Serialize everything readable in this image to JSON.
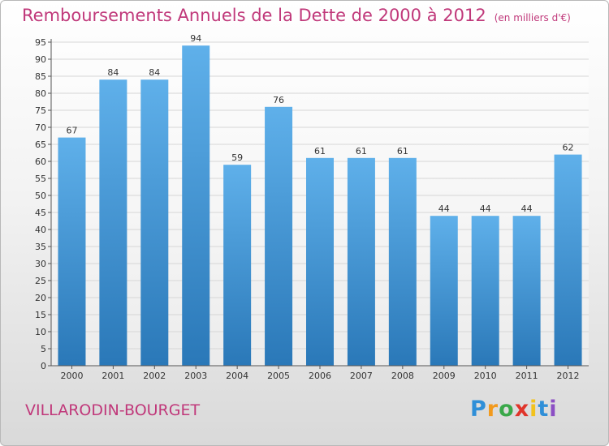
{
  "title": "Remboursements Annuels de la Dette de 2000 à 2012",
  "unit": "(en milliers d'€)",
  "place": "VILLARODIN-BOURGET",
  "logo": [
    "P",
    "r",
    "o",
    "x",
    "i",
    "t",
    "i"
  ],
  "colors": {
    "bar_light": "#5fb0ea",
    "bar_dark": "#2a78b8",
    "title": "#c0387a",
    "grid": "#d6d6d6"
  },
  "chart_data": {
    "type": "bar",
    "categories": [
      "2000",
      "2001",
      "2002",
      "2003",
      "2004",
      "2005",
      "2006",
      "2007",
      "2008",
      "2009",
      "2010",
      "2011",
      "2012"
    ],
    "values": [
      67,
      84,
      84,
      94,
      59,
      76,
      61,
      61,
      61,
      44,
      44,
      44,
      62
    ],
    "data_labels": [
      "67",
      "84",
      "84",
      "94",
      "59",
      "76",
      "61",
      "61",
      "61",
      "44",
      "44",
      "44",
      "62"
    ],
    "ylim": [
      0,
      95
    ],
    "yticks": [
      0,
      5,
      10,
      15,
      20,
      25,
      30,
      35,
      40,
      45,
      50,
      55,
      60,
      65,
      70,
      75,
      80,
      85,
      90,
      95
    ],
    "grid": true
  }
}
